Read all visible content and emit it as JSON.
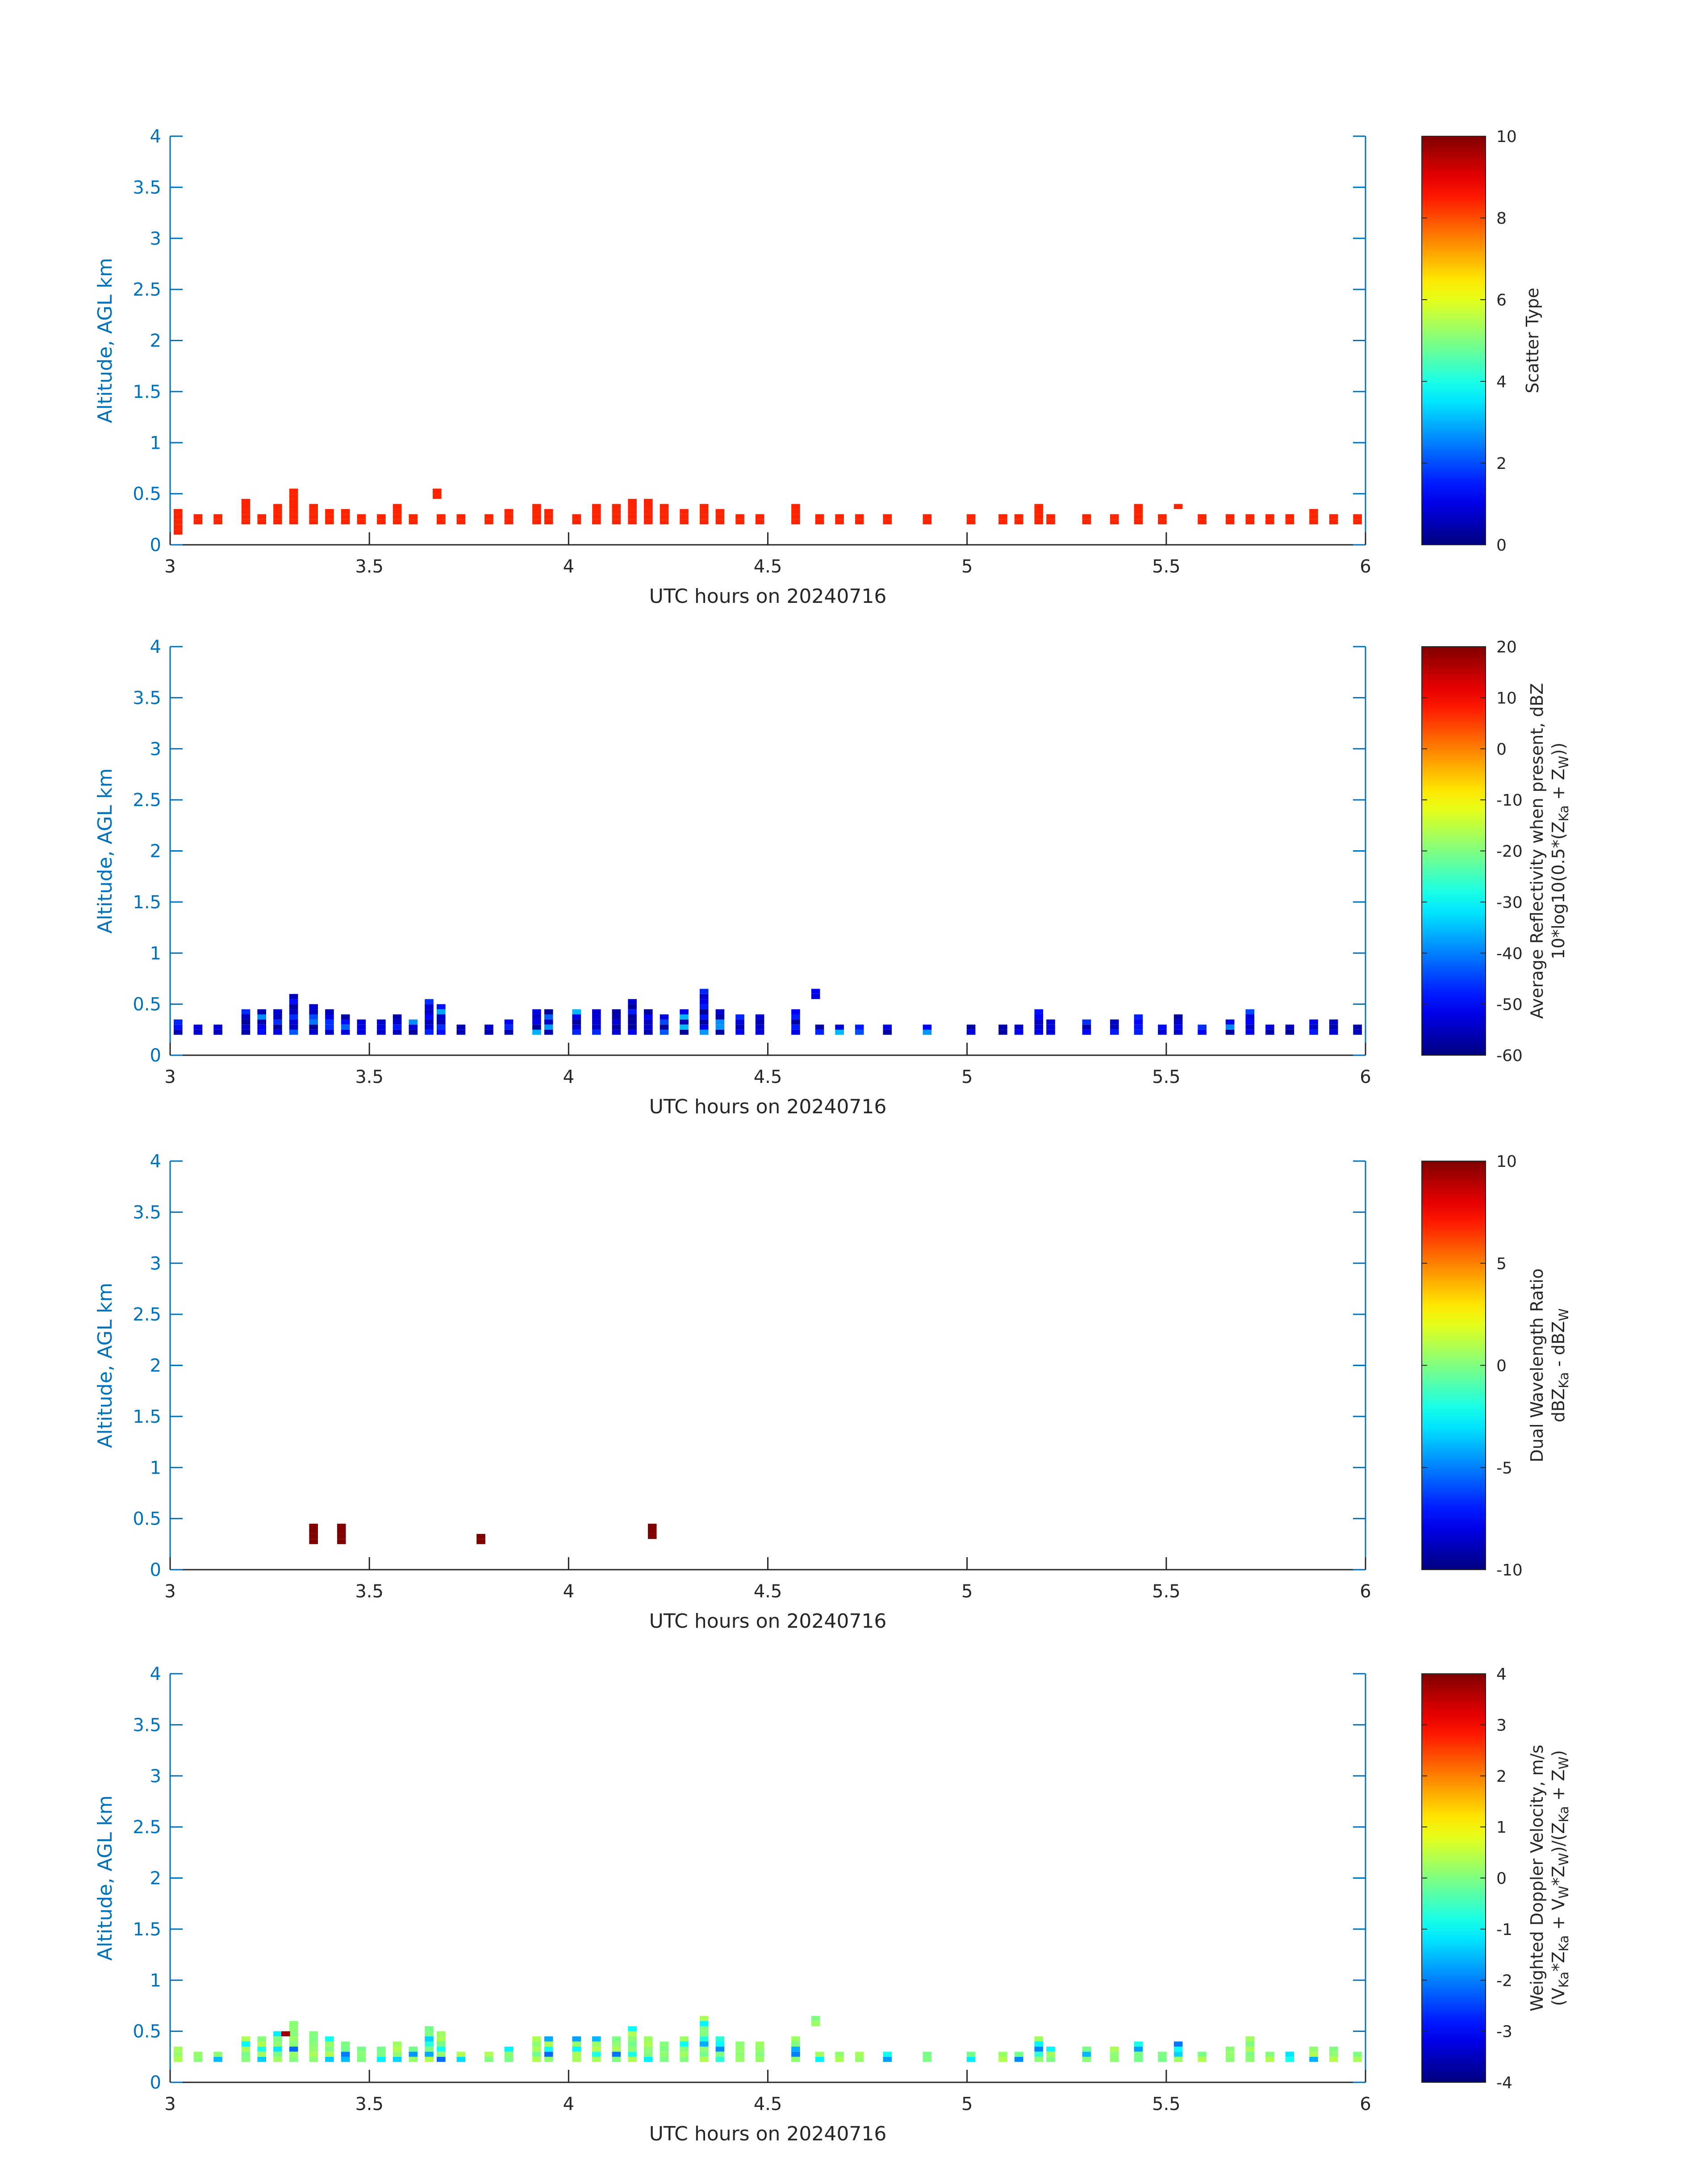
{
  "colors": {
    "axis": "#0072BD",
    "xaxis": "#262626",
    "bg": "#ffffff",
    "colormap": "jet"
  },
  "chart_data": [
    {
      "type": "heatmap",
      "name": "scatter-type",
      "xlabel": "UTC hours on 20240716",
      "ylabel": "Altitude, AGL km",
      "xlim": [
        3,
        6
      ],
      "ylim": [
        0,
        4
      ],
      "xticks": [
        "3",
        "3.5",
        "4",
        "4.5",
        "5",
        "5.5",
        "6"
      ],
      "yticks": [
        "0",
        "0.5",
        "1",
        "1.5",
        "2",
        "2.5",
        "3",
        "3.5",
        "4"
      ],
      "colorbar": {
        "title": "Scatter Type",
        "title2": "",
        "range": [
          0,
          10
        ],
        "ticks": [
          "0",
          "2",
          "4",
          "6",
          "8",
          "10"
        ]
      },
      "mode": "flat",
      "flat_value": 8.4,
      "seed": 11,
      "shift": 0.0,
      "columns": [
        [
          3.02,
          0.1,
          0.35
        ],
        [
          3.07,
          0.2,
          0.3
        ],
        [
          3.12,
          0.2,
          0.3
        ],
        [
          3.19,
          0.2,
          0.45
        ],
        [
          3.23,
          0.2,
          0.3
        ],
        [
          3.27,
          0.2,
          0.4
        ],
        [
          3.31,
          0.2,
          0.55
        ],
        [
          3.36,
          0.2,
          0.4
        ],
        [
          3.4,
          0.2,
          0.35
        ],
        [
          3.44,
          0.2,
          0.35
        ],
        [
          3.48,
          0.2,
          0.3
        ],
        [
          3.53,
          0.2,
          0.3
        ],
        [
          3.57,
          0.2,
          0.4
        ],
        [
          3.61,
          0.2,
          0.3
        ],
        [
          3.67,
          0.45,
          0.55
        ],
        [
          3.68,
          0.2,
          0.3
        ],
        [
          3.73,
          0.2,
          0.3
        ],
        [
          3.8,
          0.2,
          0.3
        ],
        [
          3.85,
          0.2,
          0.35
        ],
        [
          3.92,
          0.2,
          0.4
        ],
        [
          3.95,
          0.2,
          0.35
        ],
        [
          4.02,
          0.2,
          0.3
        ],
        [
          4.07,
          0.2,
          0.4
        ],
        [
          4.12,
          0.2,
          0.4
        ],
        [
          4.16,
          0.2,
          0.45
        ],
        [
          4.2,
          0.2,
          0.45
        ],
        [
          4.24,
          0.2,
          0.4
        ],
        [
          4.29,
          0.2,
          0.35
        ],
        [
          4.34,
          0.2,
          0.4
        ],
        [
          4.38,
          0.2,
          0.35
        ],
        [
          4.43,
          0.2,
          0.3
        ],
        [
          4.48,
          0.2,
          0.3
        ],
        [
          4.57,
          0.2,
          0.4
        ],
        [
          4.63,
          0.2,
          0.3
        ],
        [
          4.68,
          0.2,
          0.3
        ],
        [
          4.73,
          0.2,
          0.3
        ],
        [
          4.8,
          0.2,
          0.3
        ],
        [
          4.9,
          0.2,
          0.3
        ],
        [
          5.01,
          0.2,
          0.3
        ],
        [
          5.09,
          0.2,
          0.3
        ],
        [
          5.13,
          0.2,
          0.3
        ],
        [
          5.18,
          0.2,
          0.4
        ],
        [
          5.21,
          0.2,
          0.3
        ],
        [
          5.3,
          0.2,
          0.3
        ],
        [
          5.37,
          0.2,
          0.3
        ],
        [
          5.43,
          0.2,
          0.4
        ],
        [
          5.49,
          0.2,
          0.3
        ],
        [
          5.53,
          0.35,
          0.4
        ],
        [
          5.59,
          0.2,
          0.3
        ],
        [
          5.66,
          0.2,
          0.3
        ],
        [
          5.71,
          0.2,
          0.3
        ],
        [
          5.76,
          0.2,
          0.3
        ],
        [
          5.81,
          0.2,
          0.3
        ],
        [
          5.87,
          0.2,
          0.35
        ],
        [
          5.92,
          0.2,
          0.3
        ],
        [
          5.98,
          0.2,
          0.3
        ]
      ]
    },
    {
      "type": "heatmap",
      "name": "average-reflectivity",
      "xlabel": "UTC hours on 20240716",
      "ylabel": "Altitude, AGL km",
      "xlim": [
        3,
        6
      ],
      "ylim": [
        0,
        4
      ],
      "xticks": [
        "3",
        "3.5",
        "4",
        "4.5",
        "5",
        "5.5",
        "6"
      ],
      "yticks": [
        "0",
        "0.5",
        "1",
        "1.5",
        "2",
        "2.5",
        "3",
        "3.5",
        "4"
      ],
      "colorbar": {
        "title": "Average Reflectivity when present, dBZ",
        "title2": "10*log10(0.5*(Z_Ka + Z_W))",
        "range": [
          -60,
          20
        ],
        "ticks": [
          "-60",
          "-50",
          "-40",
          "-30",
          "-20",
          "-10",
          "0",
          "10",
          "20"
        ]
      },
      "mode": "refl",
      "seed": 23,
      "shift": 0.0,
      "columns": [
        [
          3.02,
          0.2,
          0.35
        ],
        [
          3.07,
          0.2,
          0.3
        ],
        [
          3.12,
          0.2,
          0.3
        ],
        [
          3.19,
          0.2,
          0.45
        ],
        [
          3.23,
          0.2,
          0.45
        ],
        [
          3.27,
          0.2,
          0.45
        ],
        [
          3.31,
          0.2,
          0.6
        ],
        [
          3.36,
          0.2,
          0.5
        ],
        [
          3.4,
          0.2,
          0.45
        ],
        [
          3.44,
          0.2,
          0.4
        ],
        [
          3.48,
          0.2,
          0.35
        ],
        [
          3.53,
          0.2,
          0.35
        ],
        [
          3.57,
          0.2,
          0.4
        ],
        [
          3.61,
          0.2,
          0.35
        ],
        [
          3.65,
          0.2,
          0.55
        ],
        [
          3.68,
          0.2,
          0.5
        ],
        [
          3.73,
          0.2,
          0.3
        ],
        [
          3.8,
          0.2,
          0.3
        ],
        [
          3.85,
          0.2,
          0.35
        ],
        [
          3.92,
          0.2,
          0.45
        ],
        [
          3.95,
          0.2,
          0.45
        ],
        [
          4.02,
          0.2,
          0.45
        ],
        [
          4.07,
          0.2,
          0.45
        ],
        [
          4.12,
          0.2,
          0.45
        ],
        [
          4.16,
          0.2,
          0.55
        ],
        [
          4.2,
          0.2,
          0.45
        ],
        [
          4.24,
          0.2,
          0.4
        ],
        [
          4.29,
          0.2,
          0.45
        ],
        [
          4.34,
          0.2,
          0.65
        ],
        [
          4.38,
          0.2,
          0.45
        ],
        [
          4.43,
          0.2,
          0.4
        ],
        [
          4.48,
          0.2,
          0.4
        ],
        [
          4.57,
          0.2,
          0.45
        ],
        [
          4.62,
          0.55,
          0.65
        ],
        [
          4.63,
          0.2,
          0.3
        ],
        [
          4.68,
          0.2,
          0.3
        ],
        [
          4.73,
          0.2,
          0.3
        ],
        [
          4.8,
          0.2,
          0.3
        ],
        [
          4.9,
          0.2,
          0.3
        ],
        [
          5.01,
          0.2,
          0.3
        ],
        [
          5.09,
          0.2,
          0.3
        ],
        [
          5.13,
          0.2,
          0.3
        ],
        [
          5.18,
          0.2,
          0.45
        ],
        [
          5.21,
          0.2,
          0.35
        ],
        [
          5.3,
          0.2,
          0.35
        ],
        [
          5.37,
          0.2,
          0.35
        ],
        [
          5.43,
          0.2,
          0.4
        ],
        [
          5.49,
          0.2,
          0.3
        ],
        [
          5.53,
          0.2,
          0.4
        ],
        [
          5.59,
          0.2,
          0.3
        ],
        [
          5.66,
          0.2,
          0.35
        ],
        [
          5.71,
          0.2,
          0.45
        ],
        [
          5.76,
          0.2,
          0.3
        ],
        [
          5.81,
          0.2,
          0.3
        ],
        [
          5.87,
          0.2,
          0.35
        ],
        [
          5.92,
          0.2,
          0.35
        ],
        [
          5.98,
          0.2,
          0.3
        ]
      ]
    },
    {
      "type": "heatmap",
      "name": "dual-wavelength-ratio",
      "xlabel": "UTC hours on 20240716",
      "ylabel": "Altitude, AGL km",
      "xlim": [
        3,
        6
      ],
      "ylim": [
        0,
        4
      ],
      "xticks": [
        "3",
        "3.5",
        "4",
        "4.5",
        "5",
        "5.5",
        "6"
      ],
      "yticks": [
        "0",
        "0.5",
        "1",
        "1.5",
        "2",
        "2.5",
        "3",
        "3.5",
        "4"
      ],
      "colorbar": {
        "title": "Dual Wavelength Ratio",
        "title2": "dBZ_Ka - dBZ_W",
        "range": [
          -10,
          10
        ],
        "ticks": [
          "-10",
          "-5",
          "0",
          "5",
          "10"
        ]
      },
      "mode": "flat",
      "flat_value": 10,
      "seed": 37,
      "shift": 0.0,
      "columns": [
        [
          3.36,
          0.25,
          0.42
        ],
        [
          3.43,
          0.25,
          0.42
        ],
        [
          3.78,
          0.25,
          0.35
        ],
        [
          4.21,
          0.3,
          0.42
        ]
      ]
    },
    {
      "type": "heatmap",
      "name": "weighted-doppler-velocity",
      "xlabel": "UTC hours on 20240716",
      "ylabel": "Altitude, AGL km",
      "xlim": [
        3,
        6
      ],
      "ylim": [
        0,
        4
      ],
      "xticks": [
        "3",
        "3.5",
        "4",
        "4.5",
        "5",
        "5.5",
        "6"
      ],
      "yticks": [
        "0",
        "0.5",
        "1",
        "1.5",
        "2",
        "2.5",
        "3",
        "3.5",
        "4"
      ],
      "colorbar": {
        "title": "Weighted Doppler Velocity, m/s",
        "title2": "(V_Ka*Z_Ka + V_W*Z_W)/(Z_Ka + Z_W)",
        "range": [
          -4,
          4
        ],
        "ticks": [
          "-4",
          "-3",
          "-2",
          "-1",
          "0",
          "1",
          "2",
          "3",
          "4"
        ]
      },
      "mode": "vel",
      "seed": 51,
      "shift": 0.0,
      "columns": [
        [
          3.02,
          0.2,
          0.35
        ],
        [
          3.07,
          0.2,
          0.3
        ],
        [
          3.12,
          0.2,
          0.3
        ],
        [
          3.19,
          0.2,
          0.45
        ],
        [
          3.23,
          0.2,
          0.45
        ],
        [
          3.27,
          0.2,
          0.5
        ],
        [
          3.31,
          0.2,
          0.6
        ],
        [
          3.36,
          0.2,
          0.5
        ],
        [
          3.4,
          0.2,
          0.45
        ],
        [
          3.44,
          0.2,
          0.4
        ],
        [
          3.48,
          0.2,
          0.35
        ],
        [
          3.53,
          0.2,
          0.35
        ],
        [
          3.57,
          0.2,
          0.4
        ],
        [
          3.61,
          0.2,
          0.35
        ],
        [
          3.65,
          0.2,
          0.55
        ],
        [
          3.68,
          0.2,
          0.5
        ],
        [
          3.73,
          0.2,
          0.3
        ],
        [
          3.8,
          0.2,
          0.3
        ],
        [
          3.85,
          0.2,
          0.35
        ],
        [
          3.92,
          0.2,
          0.45
        ],
        [
          3.95,
          0.2,
          0.45
        ],
        [
          4.02,
          0.2,
          0.45
        ],
        [
          4.07,
          0.2,
          0.45
        ],
        [
          4.12,
          0.2,
          0.45
        ],
        [
          4.16,
          0.2,
          0.55
        ],
        [
          4.2,
          0.2,
          0.45
        ],
        [
          4.24,
          0.2,
          0.4
        ],
        [
          4.29,
          0.2,
          0.45
        ],
        [
          4.34,
          0.2,
          0.65
        ],
        [
          4.38,
          0.2,
          0.45
        ],
        [
          4.43,
          0.2,
          0.4
        ],
        [
          4.48,
          0.2,
          0.4
        ],
        [
          4.57,
          0.2,
          0.45
        ],
        [
          4.62,
          0.55,
          0.65
        ],
        [
          4.63,
          0.2,
          0.3
        ],
        [
          4.68,
          0.2,
          0.3
        ],
        [
          4.73,
          0.2,
          0.3
        ],
        [
          4.8,
          0.2,
          0.3
        ],
        [
          4.9,
          0.2,
          0.3
        ],
        [
          5.01,
          0.2,
          0.3
        ],
        [
          5.09,
          0.2,
          0.3
        ],
        [
          5.13,
          0.2,
          0.3
        ],
        [
          5.18,
          0.2,
          0.45
        ],
        [
          5.21,
          0.2,
          0.35
        ],
        [
          5.3,
          0.2,
          0.35
        ],
        [
          5.37,
          0.2,
          0.35
        ],
        [
          5.43,
          0.2,
          0.4
        ],
        [
          5.49,
          0.2,
          0.3
        ],
        [
          5.53,
          0.2,
          0.4
        ],
        [
          5.59,
          0.2,
          0.3
        ],
        [
          5.66,
          0.2,
          0.35
        ],
        [
          5.71,
          0.2,
          0.45
        ],
        [
          5.76,
          0.2,
          0.3
        ],
        [
          5.81,
          0.2,
          0.3
        ],
        [
          5.87,
          0.2,
          0.35
        ],
        [
          5.92,
          0.2,
          0.35
        ],
        [
          5.98,
          0.2,
          0.3
        ]
      ],
      "special": [
        [
          3.29,
          0.45,
          3.8
        ]
      ]
    }
  ]
}
